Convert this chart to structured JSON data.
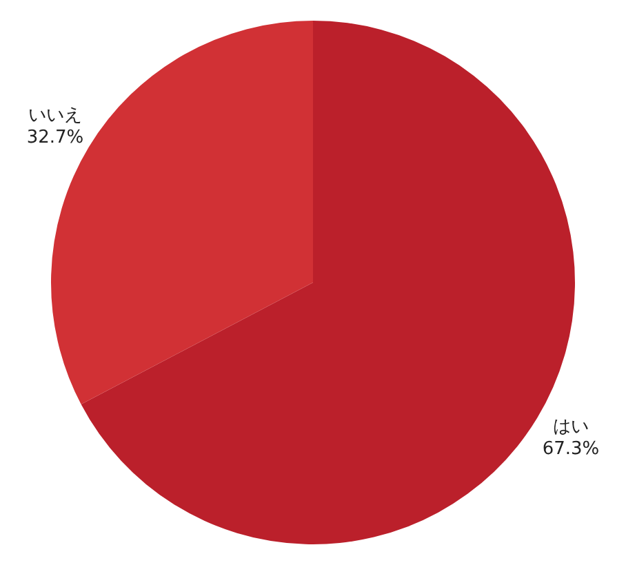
{
  "chart_data": {
    "type": "pie",
    "categories": [
      "はい",
      "いいえ"
    ],
    "values": [
      67.3,
      32.7
    ],
    "colors": [
      "#bb202b",
      "#d13135"
    ],
    "value_labels": [
      "67.3%",
      "32.7%"
    ],
    "legend": false
  }
}
